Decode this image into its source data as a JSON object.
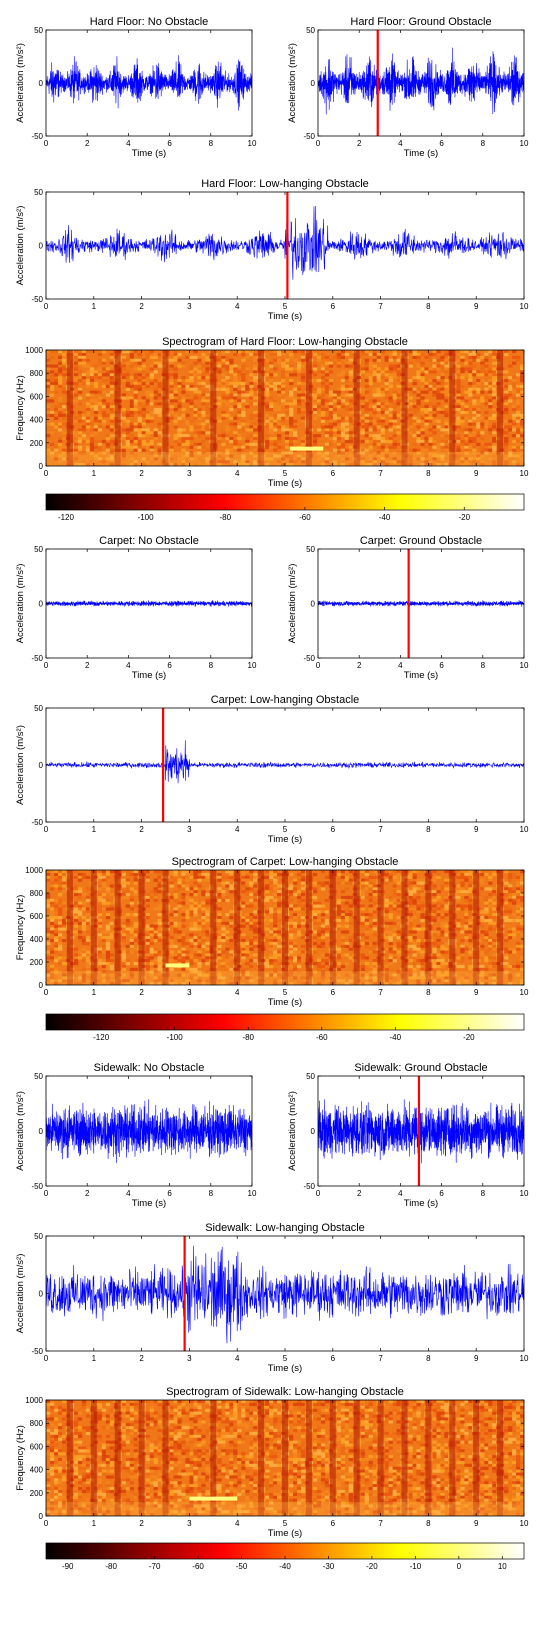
{
  "chart_data": [
    {
      "type": "line",
      "title": "Hard Floor: No Obstacle",
      "xlabel": "Time (s)",
      "ylabel": "Acceleration (m/s²)",
      "xlim": [
        0,
        10
      ],
      "ylim": [
        -50,
        50
      ],
      "xticks": [
        "0",
        "2",
        "4",
        "6",
        "8",
        "10"
      ],
      "yticks": [
        "50",
        "0",
        "-50"
      ],
      "series": [
        {
          "values_description": "blue vibration signal",
          "x_range": [
            0,
            10
          ],
          "amplitude_peak": 30,
          "envelope_bursts_at": [
            0.4,
            1.4,
            2.4,
            3.4,
            4.4,
            5.4,
            6.4,
            7.4,
            8.4,
            9.4
          ]
        }
      ],
      "color": "#0000ff"
    },
    {
      "type": "line",
      "title": "Hard Floor: Ground Obstacle",
      "xlabel": "Time (s)",
      "ylabel": "Acceleration (m/s²)",
      "xlim": [
        0,
        10
      ],
      "ylim": [
        -50,
        50
      ],
      "xticks": [
        "0",
        "2",
        "4",
        "6",
        "8",
        "10"
      ],
      "yticks": [
        "50",
        "0",
        "-50"
      ],
      "series": [
        {
          "x_range": [
            0,
            10
          ],
          "amplitude_peak": 38,
          "envelope_bursts_at": [
            0.5,
            1.5,
            2.5,
            3.5,
            4.5,
            5.5,
            6.5,
            7.5,
            8.5,
            9.5
          ]
        }
      ],
      "event_marker_x": 2.9,
      "color": "#0000ff"
    },
    {
      "type": "line",
      "title": "Hard Floor: Low-hanging Obstacle",
      "xlabel": "Time (s)",
      "ylabel": "Acceleration (m/s²)",
      "xlim": [
        0,
        10
      ],
      "ylim": [
        -50,
        50
      ],
      "xticks": [
        "0",
        "1",
        "2",
        "3",
        "4",
        "5",
        "6",
        "7",
        "8",
        "9",
        "10"
      ],
      "yticks": [
        "50",
        "0",
        "-50"
      ],
      "series": [
        {
          "x_range": [
            0,
            10
          ],
          "amplitude_peak": 22,
          "obstacle_burst": {
            "from": 5.0,
            "to": 5.9,
            "amplitude": 40
          },
          "envelope_bursts_at": [
            0.5,
            1.5,
            2.5,
            3.5,
            4.5,
            6.5,
            7.5,
            8.5,
            9.5
          ]
        }
      ],
      "event_marker_x": 5.05,
      "color": "#0000ff"
    },
    {
      "type": "heatmap",
      "title": "Spectrogram of Hard Floor: Low-hanging Obstacle",
      "xlabel": "Time (s)",
      "ylabel": "Frequency (Hz)",
      "xlim": [
        0,
        10
      ],
      "ylim": [
        0,
        1000
      ],
      "xticks": [
        "0",
        "1",
        "2",
        "3",
        "4",
        "5",
        "6",
        "7",
        "8",
        "9",
        "10"
      ],
      "yticks": [
        "1000",
        "800",
        "600",
        "400",
        "200",
        "0"
      ],
      "colorbar_ticks": [
        "-120",
        "-100",
        "-80",
        "-60",
        "-40",
        "-20"
      ],
      "colorbar_range": [
        -125,
        -5
      ],
      "dark_bands_at": [
        0.5,
        1.5,
        2.5,
        3.5,
        4.5,
        5.5,
        6.5,
        7.5,
        8.5,
        9.5
      ],
      "highlight": {
        "x": [
          5.1,
          5.8
        ],
        "y_hz": 150
      }
    },
    {
      "type": "line",
      "title": "Carpet: No Obstacle",
      "xlabel": "Time (s)",
      "ylabel": "Acceleration (m/s²)",
      "xlim": [
        0,
        10
      ],
      "ylim": [
        -50,
        50
      ],
      "xticks": [
        "0",
        "2",
        "4",
        "6",
        "8",
        "10"
      ],
      "yticks": [
        "50",
        "0",
        "-50"
      ],
      "series": [
        {
          "x_range": [
            0,
            10
          ],
          "amplitude_peak": 5
        }
      ],
      "color": "#0000ff"
    },
    {
      "type": "line",
      "title": "Carpet: Ground Obstacle",
      "xlabel": "Time (s)",
      "ylabel": "Acceleration (m/s²)",
      "xlim": [
        0,
        10
      ],
      "ylim": [
        -50,
        50
      ],
      "xticks": [
        "0",
        "2",
        "4",
        "6",
        "8",
        "10"
      ],
      "yticks": [
        "50",
        "0",
        "-50"
      ],
      "series": [
        {
          "x_range": [
            0,
            10
          ],
          "amplitude_peak": 5
        }
      ],
      "event_marker_x": 4.4,
      "color": "#0000ff"
    },
    {
      "type": "line",
      "title": "Carpet: Low-hanging Obstacle",
      "xlabel": "Time (s)",
      "ylabel": "Acceleration (m/s²)",
      "xlim": [
        0,
        10
      ],
      "ylim": [
        -50,
        50
      ],
      "xticks": [
        "0",
        "1",
        "2",
        "3",
        "4",
        "5",
        "6",
        "7",
        "8",
        "9",
        "10"
      ],
      "yticks": [
        "50",
        "0",
        "-50"
      ],
      "series": [
        {
          "x_range": [
            0,
            10
          ],
          "amplitude_peak": 5,
          "obstacle_burst": {
            "from": 2.5,
            "to": 3.0,
            "amplitude": 23
          }
        }
      ],
      "event_marker_x": 2.45,
      "color": "#0000ff"
    },
    {
      "type": "heatmap",
      "title": "Spectrogram of Carpet: Low-hanging Obstacle",
      "xlabel": "Time (s)",
      "ylabel": "Frequency (Hz)",
      "xlim": [
        0,
        10
      ],
      "ylim": [
        0,
        1000
      ],
      "xticks": [
        "0",
        "1",
        "2",
        "3",
        "4",
        "5",
        "6",
        "7",
        "8",
        "9",
        "10"
      ],
      "yticks": [
        "1000",
        "800",
        "600",
        "400",
        "200",
        "0"
      ],
      "colorbar_ticks": [
        "-120",
        "-100",
        "-80",
        "-60",
        "-40",
        "-20"
      ],
      "colorbar_range": [
        -135,
        -5
      ],
      "dark_bands_at": [
        0.5,
        1.0,
        1.5,
        2.0,
        2.5,
        3.5,
        4.0,
        4.5,
        5.0,
        5.5,
        6.0,
        6.5,
        7.0,
        7.5,
        8.0,
        8.5,
        9.0,
        9.5
      ],
      "highlight": {
        "x": [
          2.5,
          3.0
        ],
        "y_hz": 170
      }
    },
    {
      "type": "line",
      "title": "Sidewalk: No Obstacle",
      "xlabel": "Time (s)",
      "ylabel": "Acceleration (m/s²)",
      "xlim": [
        0,
        10
      ],
      "ylim": [
        -50,
        50
      ],
      "xticks": [
        "0",
        "2",
        "4",
        "6",
        "8",
        "10"
      ],
      "yticks": [
        "50",
        "0",
        "-50"
      ],
      "series": [
        {
          "x_range": [
            0,
            10
          ],
          "amplitude_peak": 48
        }
      ],
      "color": "#0000ff"
    },
    {
      "type": "line",
      "title": "Sidewalk: Ground Obstacle",
      "xlabel": "Time (s)",
      "ylabel": "Acceleration (m/s²)",
      "xlim": [
        0,
        10
      ],
      "ylim": [
        -50,
        50
      ],
      "xticks": [
        "0",
        "2",
        "4",
        "6",
        "8",
        "10"
      ],
      "yticks": [
        "50",
        "0",
        "-50"
      ],
      "series": [
        {
          "x_range": [
            0,
            10
          ],
          "amplitude_peak": 50
        }
      ],
      "event_marker_x": 4.9,
      "color": "#0000ff"
    },
    {
      "type": "line",
      "title": "Sidewalk: Low-hanging Obstacle",
      "xlabel": "Time (s)",
      "ylabel": "Acceleration (m/s²)",
      "xlim": [
        0,
        10
      ],
      "ylim": [
        -50,
        50
      ],
      "xticks": [
        "0",
        "1",
        "2",
        "3",
        "4",
        "5",
        "6",
        "7",
        "8",
        "9",
        "10"
      ],
      "yticks": [
        "50",
        "0",
        "-50"
      ],
      "series": [
        {
          "x_range": [
            0,
            10
          ],
          "amplitude_peak": 45,
          "obstacle_burst": {
            "from": 2.95,
            "to": 4.1,
            "amplitude": 52
          }
        }
      ],
      "event_marker_x": 2.9,
      "color": "#0000ff"
    },
    {
      "type": "heatmap",
      "title": "Spectrogram of Sidewalk: Low-hanging Obstacle",
      "xlabel": "Time (s)",
      "ylabel": "Frequency (Hz)",
      "xlim": [
        0,
        10
      ],
      "ylim": [
        0,
        1000
      ],
      "xticks": [
        "0",
        "1",
        "2",
        "3",
        "4",
        "5",
        "6",
        "7",
        "8",
        "9",
        "10"
      ],
      "yticks": [
        "1000",
        "800",
        "600",
        "400",
        "200",
        "0"
      ],
      "colorbar_ticks": [
        "-90",
        "-80",
        "-70",
        "-60",
        "-50",
        "-40",
        "-30",
        "-20",
        "-10",
        "0",
        "10"
      ],
      "colorbar_range": [
        -95,
        15
      ],
      "dark_bands_at": [
        0.5,
        1.0,
        1.5,
        2.0,
        2.5,
        3.5,
        4.5,
        5.0,
        5.5,
        6.0,
        6.5,
        7.0,
        7.5,
        8.0,
        8.5,
        9.0,
        9.5
      ],
      "highlight": {
        "x": [
          3.0,
          4.0
        ],
        "y_hz": 150
      }
    }
  ]
}
